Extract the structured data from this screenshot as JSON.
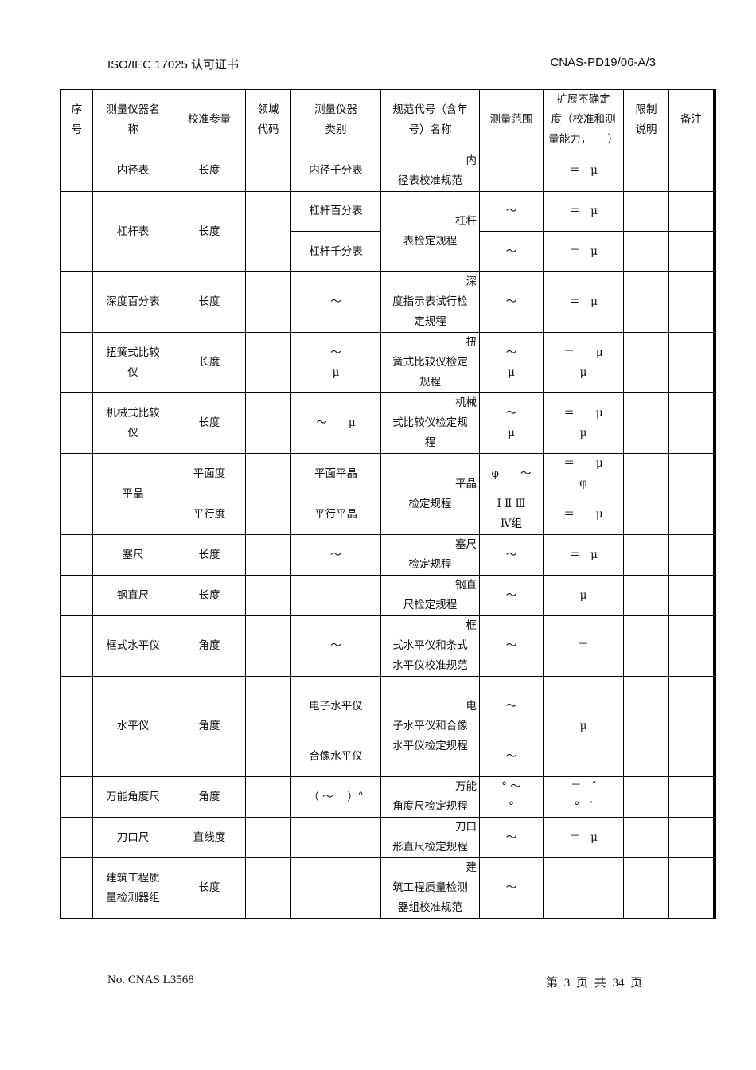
{
  "header": {
    "left": "ISO/IEC 17025  认可证书",
    "right": "CNAS-PD19/06-A/3"
  },
  "table": {
    "columns": [
      "序\n号",
      "测量仪器名\n称",
      "校准参量",
      "领域\n代码",
      "测量仪器\n类别",
      "规范代号（含年\n号）名称",
      "测量范围",
      "扩展不确定\n度（校准和测\n量能力，　　）",
      "限制\n说明",
      "备注"
    ],
    "rows": [
      {
        "no": "",
        "name": "内径表",
        "param": "长度",
        "code": "",
        "type": "内径千分表",
        "spec": {
          "head": "内",
          "body": "径表校准规范"
        },
        "range": "",
        "unc": "＝　μ",
        "limit": "",
        "note": ""
      },
      {
        "no": "",
        "name": "杠杆表",
        "param": "长度",
        "code": "",
        "type": [
          "杠杆百分表",
          "杠杆千分表"
        ],
        "spec": {
          "head": "杠杆",
          "body": "表检定规程"
        },
        "range": [
          "～",
          "～"
        ],
        "unc": [
          "＝　μ",
          "＝　μ"
        ],
        "limit": [
          "",
          ""
        ],
        "note": [
          "",
          ""
        ]
      },
      {
        "no": "",
        "name": "深度百分表",
        "param": "长度",
        "code": "",
        "type": "～",
        "spec": {
          "head": "深",
          "body": "度指示表试行检\n定规程"
        },
        "range": "～",
        "unc": "＝　μ",
        "limit": "",
        "note": ""
      },
      {
        "no": "",
        "name": "扭簧式比较\n仪",
        "param": "长度",
        "code": "",
        "type": "～\nμ",
        "spec": {
          "head": "扭",
          "body": "簧式比较仪检定\n规程"
        },
        "range": "～\nμ",
        "unc": "＝　　μ\nμ",
        "limit": "",
        "note": ""
      },
      {
        "no": "",
        "name": "机械式比较\n仪",
        "param": "长度",
        "code": "",
        "type": "～　　μ",
        "spec": {
          "head": "机械",
          "body": "式比较仪检定规\n程"
        },
        "range": "～\nμ",
        "unc": "＝　　μ\nμ",
        "limit": "",
        "note": ""
      },
      {
        "no": "",
        "name": "平晶",
        "param": [
          "平面度",
          "平行度"
        ],
        "code": [
          "",
          ""
        ],
        "type": [
          "平面平晶",
          "平行平晶"
        ],
        "spec": {
          "head": "平晶",
          "body": "检定规程"
        },
        "range": [
          "φ　　～",
          "Ⅰ Ⅱ Ⅲ\nⅣ组"
        ],
        "unc": [
          "＝　　μ\nφ",
          "＝　　μ"
        ],
        "limit": [
          "",
          ""
        ],
        "note": [
          "",
          ""
        ]
      },
      {
        "no": "",
        "name": "塞尺",
        "param": "长度",
        "code": "",
        "type": "～",
        "spec": {
          "head": "塞尺",
          "body": "检定规程"
        },
        "range": "～",
        "unc": "＝　μ",
        "limit": "",
        "note": ""
      },
      {
        "no": "",
        "name": "钢直尺",
        "param": "长度",
        "code": "",
        "type": "",
        "spec": {
          "head": "钢直",
          "body": "尺检定规程"
        },
        "range": "～",
        "unc": "μ",
        "limit": "",
        "note": ""
      },
      {
        "no": "",
        "name": "框式水平仪",
        "param": "角度",
        "code": "",
        "type": "～",
        "spec": {
          "head": "框",
          "body": "式水平仪和条式\n水平仪校准规范"
        },
        "range": "～",
        "unc": "＝",
        "limit": "",
        "note": ""
      },
      {
        "no": "",
        "name": "水平仪",
        "param": "角度",
        "code": "",
        "type": [
          "电子水平仪",
          "合像水平仪"
        ],
        "spec": {
          "head": "电",
          "body": "子水平仪和合像\n水平仪检定规程"
        },
        "range": [
          "～",
          "～"
        ],
        "unc": "μ",
        "limit": "",
        "note": [
          "",
          ""
        ]
      },
      {
        "no": "",
        "name": "万能角度尺",
        "param": "角度",
        "code": "",
        "type": "（ ～　 ）°",
        "spec": {
          "head": "万能",
          "body": "角度尺检定规程"
        },
        "range": "° ～\n°",
        "unc": "＝　″\n°　′",
        "limit": "",
        "note": ""
      },
      {
        "no": "",
        "name": "刀口尺",
        "param": "直线度",
        "code": "",
        "type": "",
        "spec": {
          "head": "刀口",
          "body": "形直尺检定规程"
        },
        "range": "～",
        "unc": "＝　μ",
        "limit": "",
        "note": ""
      },
      {
        "no": "",
        "name": "建筑工程质\n量检测器组",
        "param": "长度",
        "code": "",
        "type": "",
        "spec": {
          "head": "建",
          "body": "筑工程质量检测\n器组校准规范"
        },
        "range": "～",
        "unc": "",
        "limit": "",
        "note": ""
      }
    ]
  },
  "footer": {
    "left": "No. CNAS L3568",
    "right": "第 3 页 共 34 页"
  }
}
